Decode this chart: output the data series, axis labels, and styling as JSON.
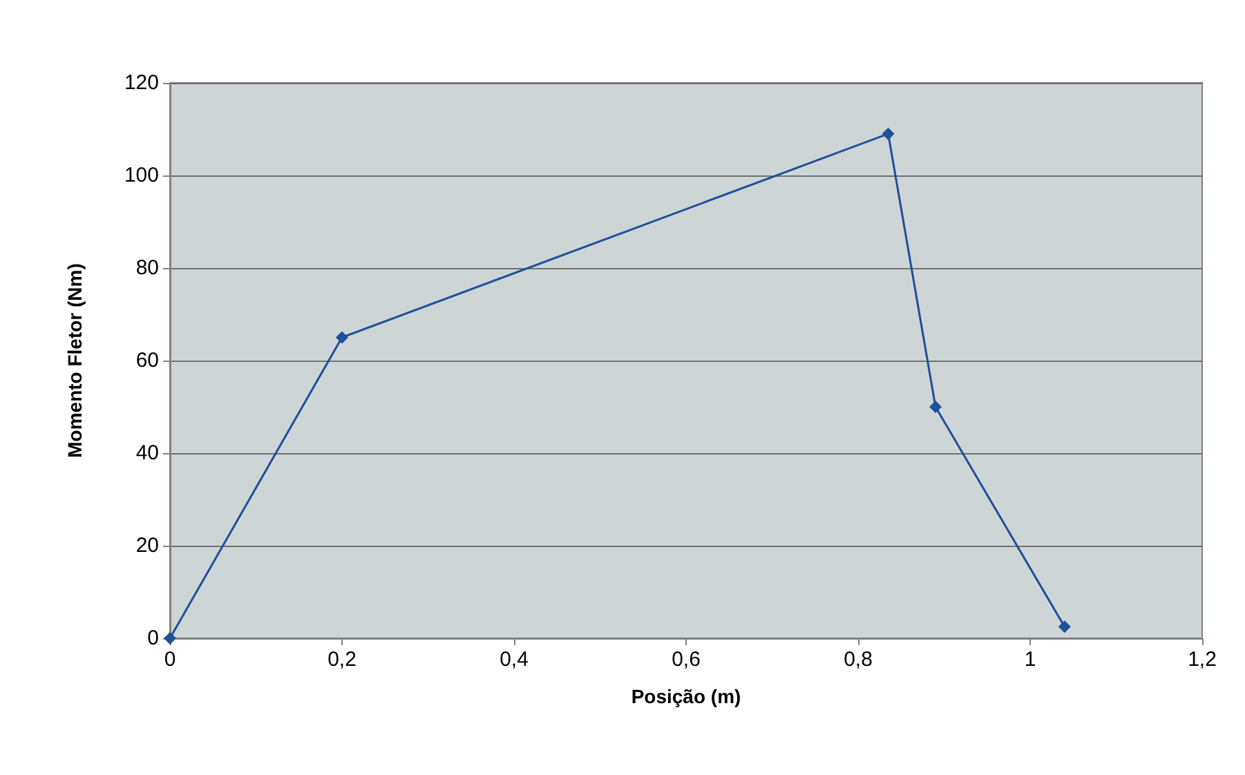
{
  "chart_data": {
    "type": "line",
    "xlabel": "Posição (m)",
    "ylabel": "Momento Fletor (Nm)",
    "x": [
      0,
      0.2,
      0.835,
      0.89,
      1.04
    ],
    "series": [
      {
        "color": "#1f4e9a",
        "values": [
          0,
          65,
          109,
          50,
          2.5
        ]
      }
    ],
    "xlim": [
      0,
      1.2
    ],
    "xticks": [
      0,
      {
        "value": 0.2,
        "label": "0,2"
      },
      {
        "value": 0.4,
        "label": "0,4"
      },
      {
        "value": 0.6,
        "label": "0,6"
      },
      {
        "value": 0.8,
        "label": "0,8"
      },
      1,
      {
        "value": 1.2,
        "label": "1,2"
      }
    ],
    "ylim": [
      0,
      120
    ],
    "yticks": [
      0,
      20,
      40,
      60,
      80,
      100,
      120
    ],
    "grid": "y",
    "marker": "diamond",
    "line_style": "solid"
  }
}
